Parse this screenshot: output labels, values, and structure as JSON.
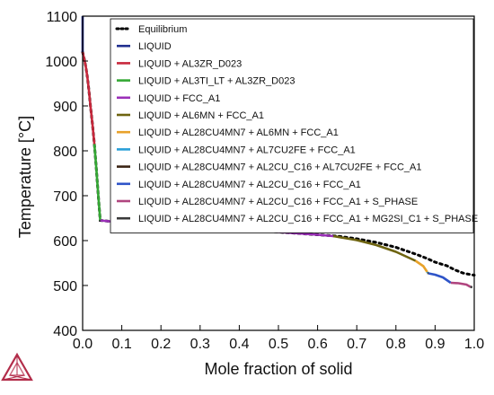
{
  "chart_data": {
    "type": "line",
    "xlabel": "Mole fraction of solid",
    "ylabel": "Temperature [°C]",
    "xlim": [
      0.0,
      1.0
    ],
    "ylim": [
      400,
      1100
    ],
    "xticks": [
      "0.0",
      "0.1",
      "0.2",
      "0.3",
      "0.4",
      "0.5",
      "0.6",
      "0.7",
      "0.8",
      "0.9",
      "1.0"
    ],
    "yticks": [
      "400",
      "500",
      "600",
      "700",
      "800",
      "900",
      "1000",
      "1100"
    ],
    "grid": false,
    "legend_position": "top-right",
    "equilibrium": {
      "name": "Equilibrium",
      "style": "dotted",
      "color": "#000000",
      "x": [
        0.0,
        0.004,
        0.008,
        0.012,
        0.016,
        0.02,
        0.025,
        0.03,
        0.035,
        0.04,
        0.045,
        0.1,
        0.2,
        0.3,
        0.4,
        0.5,
        0.6,
        0.65,
        0.7,
        0.75,
        0.8,
        0.85,
        0.88,
        0.9,
        0.93,
        0.95,
        0.97,
        0.98,
        1.0
      ],
      "y": [
        1020,
        1005,
        988,
        965,
        935,
        900,
        860,
        815,
        760,
        700,
        645,
        640,
        634,
        629,
        624,
        619,
        613,
        610,
        604,
        596,
        585,
        570,
        560,
        552,
        544,
        535,
        528,
        526,
        523
      ]
    },
    "series": [
      {
        "name": "LIQUID",
        "color": "#1f2e8f",
        "x": [
          0.0,
          0.0
        ],
        "y": [
          1100,
          1020
        ]
      },
      {
        "name": "LIQUID + AL3ZR_D023",
        "color": "#c8283c",
        "x": [
          0.0,
          0.004,
          0.008,
          0.012,
          0.016,
          0.02,
          0.025,
          0.03
        ],
        "y": [
          1020,
          1005,
          988,
          965,
          935,
          900,
          860,
          815
        ]
      },
      {
        "name": "LIQUID + AL3TI_LT + AL3ZR_D023",
        "color": "#34a834",
        "x": [
          0.03,
          0.035,
          0.04,
          0.045
        ],
        "y": [
          815,
          760,
          700,
          645
        ]
      },
      {
        "name": "LIQUID + FCC_A1",
        "color": "#9b30b8",
        "x": [
          0.045,
          0.1,
          0.2,
          0.3,
          0.4,
          0.5,
          0.6,
          0.64
        ],
        "y": [
          645,
          640,
          634,
          629,
          624,
          619,
          613,
          610
        ]
      },
      {
        "name": "LIQUID + AL6MN + FCC_A1",
        "color": "#6e6410",
        "x": [
          0.64,
          0.7,
          0.75,
          0.8,
          0.85
        ],
        "y": [
          610,
          601,
          590,
          575,
          555
        ]
      },
      {
        "name": "LIQUID + AL28CU4MN7 + AL6MN + FCC_A1",
        "color": "#e8a22a",
        "x": [
          0.85,
          0.87,
          0.88
        ],
        "y": [
          555,
          543,
          530
        ]
      },
      {
        "name": "LIQUID + AL28CU4MN7 + AL7CU2FE + FCC_A1",
        "color": "#2a9fd8",
        "x": [
          0.88,
          0.881
        ],
        "y": [
          530,
          528
        ]
      },
      {
        "name": "LIQUID + AL28CU4MN7 + AL2CU_C16 + AL7CU2FE + FCC_A1",
        "color": "#3a2414",
        "x": [
          0.881,
          0.883
        ],
        "y": [
          528,
          527
        ]
      },
      {
        "name": "LIQUID + AL28CU4MN7 + AL2CU_C16 + FCC_A1",
        "color": "#2e54c8",
        "x": [
          0.883,
          0.9,
          0.92,
          0.94
        ],
        "y": [
          527,
          524,
          518,
          506
        ]
      },
      {
        "name": "LIQUID + AL28CU4MN7 + AL2CU_C16 + FCC_A1 + S_PHASE",
        "color": "#b0457f",
        "x": [
          0.94,
          0.96,
          0.98,
          0.99
        ],
        "y": [
          506,
          505,
          502,
          497
        ]
      },
      {
        "name": "LIQUID + AL28CU4MN7 + AL2CU_C16 + FCC_A1 + MG2SI_C1 + S_PHASE",
        "color": "#3a3a3a",
        "x": [
          0.99,
          0.995
        ],
        "y": [
          497,
          496
        ]
      }
    ]
  }
}
